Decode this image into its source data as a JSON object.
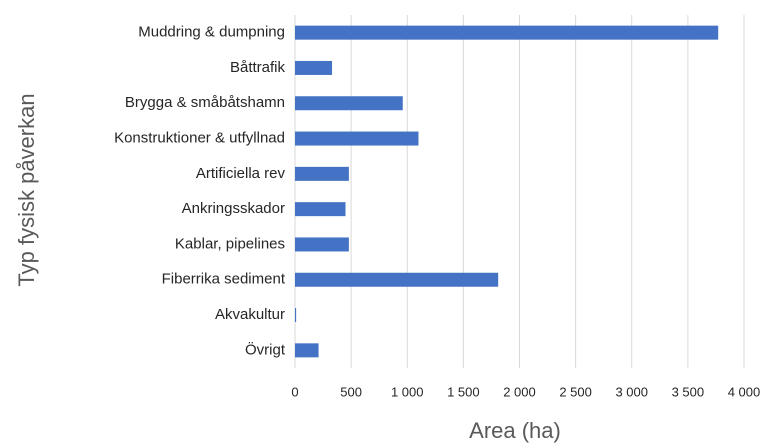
{
  "chart_data": {
    "type": "hbar",
    "xlabel": "Area (ha)",
    "ylabel": "Typ fysisk påverkan",
    "categories": [
      "Muddring & dumpning",
      "Båttrafik",
      "Brygga & småbåtshamn",
      "Konstruktioner & utfyllnad",
      "Artificiella rev",
      "Ankringsskador",
      "Kablar, pipelines",
      "Fiberrika sediment",
      "Akvakultur",
      "Övrigt"
    ],
    "values": [
      3770,
      330,
      960,
      1100,
      480,
      450,
      480,
      1810,
      10,
      210
    ],
    "color": "#4472c4",
    "xlim": [
      0,
      4000
    ],
    "xticks": [
      0,
      500,
      {
        "value": 1000,
        "label": "1 000"
      },
      {
        "value": 1500,
        "label": "1 500"
      },
      {
        "value": 2000,
        "label": "2 000"
      },
      {
        "value": 2500,
        "label": "2 500"
      },
      {
        "value": 3000,
        "label": "3 000"
      },
      {
        "value": 3500,
        "label": "3 500"
      },
      {
        "value": 4000,
        "label": "4 000"
      }
    ],
    "grid": true
  }
}
